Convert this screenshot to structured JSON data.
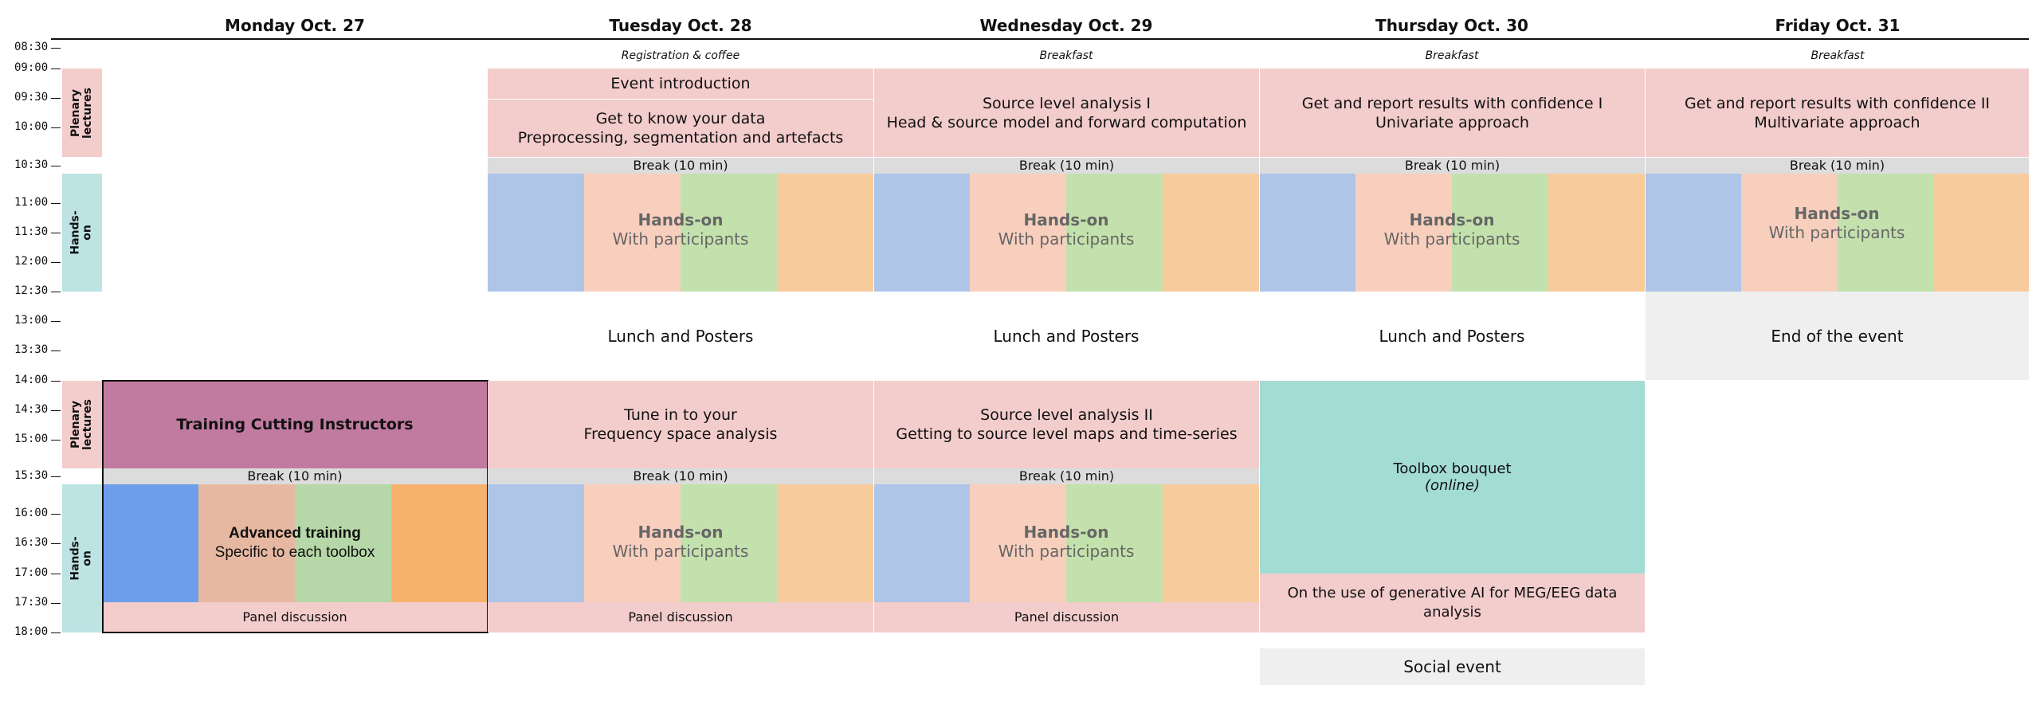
{
  "days": [
    "Monday Oct. 27",
    "Tuesday Oct. 28",
    "Wednesday Oct. 29",
    "Thursday Oct. 30",
    "Friday Oct. 31"
  ],
  "times": [
    "08:30",
    "09:00",
    "09:30",
    "10:00",
    "10:30",
    "11:00",
    "11:30",
    "12:00",
    "12:30",
    "13:00",
    "13:30",
    "14:00",
    "14:30",
    "15:00",
    "15:30",
    "16:00",
    "16:30",
    "17:00",
    "17:30",
    "18:00"
  ],
  "side_labels": {
    "plenary": "Plenary\nlectures",
    "handson": "Hands-on"
  },
  "common": {
    "break": "Break (10 min)",
    "hands_title": "Hands-on",
    "hands_sub": "With participants",
    "lunch": "Lunch and Posters",
    "panel": "Panel discussion",
    "breakfast": "Breakfast"
  },
  "monday": {
    "training_title": "Training Cutting Instructors",
    "advanced_title": "Advanced training",
    "advanced_sub": "Specific to each toolbox"
  },
  "tuesday": {
    "morning_top": "Registration & coffee",
    "intro": "Event introduction",
    "data_line1": "Get to know your data",
    "data_line2": "Preprocessing, segmentation and artefacts",
    "afternoon_line1": "Tune in to your",
    "afternoon_line2": "Frequency space analysis"
  },
  "wednesday": {
    "morning_line1": "Source level analysis I",
    "morning_line2": "Head & source model and forward computation",
    "afternoon_line1": "Source level analysis II",
    "afternoon_line2": "Getting to source level maps and time-series"
  },
  "thursday": {
    "morning_line1": "Get and report results with confidence I",
    "morning_line2": "Univariate approach",
    "toolbox_title": "Toolbox bouquet",
    "toolbox_sub": "(online)",
    "genai": "On the use of generative AI for MEG/EEG data analysis",
    "social": "Social event"
  },
  "friday": {
    "morning_line1": "Get and report results with confidence II",
    "morning_line2": "Multivariate approach",
    "end": "End of the event"
  },
  "colors": {
    "pink": "#f3cccc",
    "training": "#c27ba0",
    "toolbox": "#a3dbd5",
    "plenary_side": "#f3cccc",
    "handson_side": "#bde3e3",
    "blue_dark": "#6d9eeb",
    "peach_dark": "#e6b8a2",
    "green_dark": "#b6d7a8",
    "orange_dark": "#f6b26b"
  }
}
